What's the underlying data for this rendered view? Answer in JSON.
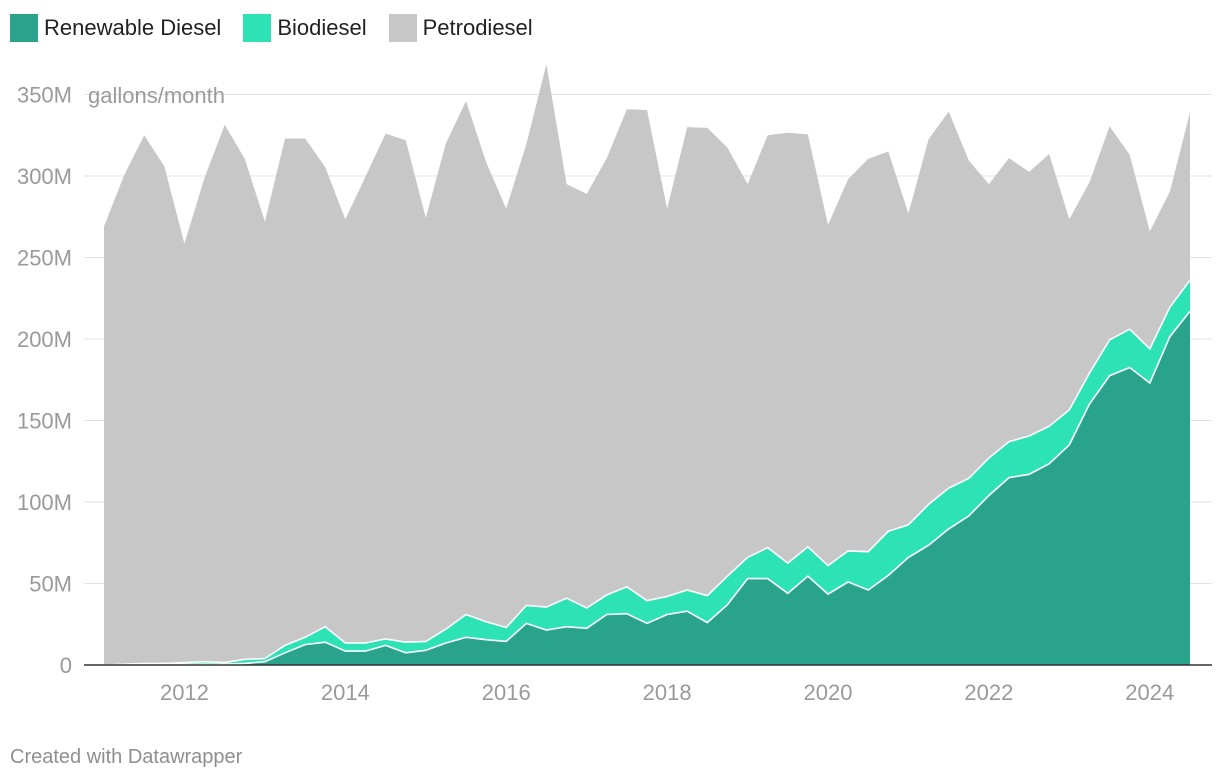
{
  "legend": {
    "items": [
      {
        "label": "Renewable Diesel",
        "color": "#2aa38d"
      },
      {
        "label": "Biodiesel",
        "color": "#2de3b5"
      },
      {
        "label": "Petrodiesel",
        "color": "#c7c7c7"
      }
    ]
  },
  "credit": "Created with Datawrapper",
  "chart_data": {
    "type": "area",
    "stacked": true,
    "unit_label": "gallons/month",
    "x_ticks": [
      "2012",
      "2014",
      "2016",
      "2018",
      "2020",
      "2022",
      "2024"
    ],
    "y_ticks": [
      "0",
      "50M",
      "100M",
      "150M",
      "200M",
      "250M",
      "300M",
      "350M"
    ],
    "ylim": [
      0,
      350000000
    ],
    "xlim": [
      "2011-01",
      "2024-07"
    ],
    "grid": true,
    "legend_position": "top-left",
    "x": [
      "2011-01",
      "2011-04",
      "2011-07",
      "2011-10",
      "2012-01",
      "2012-04",
      "2012-07",
      "2012-10",
      "2013-01",
      "2013-04",
      "2013-07",
      "2013-10",
      "2014-01",
      "2014-04",
      "2014-07",
      "2014-10",
      "2015-01",
      "2015-04",
      "2015-07",
      "2015-10",
      "2016-01",
      "2016-04",
      "2016-07",
      "2016-10",
      "2017-01",
      "2017-04",
      "2017-07",
      "2017-10",
      "2018-01",
      "2018-04",
      "2018-07",
      "2018-10",
      "2019-01",
      "2019-04",
      "2019-07",
      "2019-10",
      "2020-01",
      "2020-04",
      "2020-07",
      "2020-10",
      "2021-01",
      "2021-04",
      "2021-07",
      "2021-10",
      "2022-01",
      "2022-04",
      "2022-07",
      "2022-10",
      "2023-01",
      "2023-04",
      "2023-07",
      "2023-10",
      "2024-01",
      "2024-04",
      "2024-07"
    ],
    "series": [
      {
        "name": "Renewable Diesel",
        "color": "#2aa38d",
        "values": [
          0,
          0,
          0.5,
          0.5,
          0.5,
          0.5,
          0.5,
          1.0,
          2.0,
          7.5,
          12.5,
          14.0,
          8.5,
          8.5,
          12.0,
          7.5,
          9.0,
          13.5,
          17.0,
          15.5,
          14.5,
          25.5,
          21.5,
          23.5,
          22.5,
          31.0,
          31.5,
          25.5,
          31.0,
          33.0,
          26.0,
          37.0,
          53.0,
          53.0,
          44.0,
          54.5,
          43.5,
          51.0,
          46.0,
          55.0,
          66.0,
          73.5,
          83.5,
          91.5,
          104.0,
          115.0,
          117.0,
          123.5,
          135.0,
          160.0,
          177.5,
          182.5,
          173.0,
          201.5,
          217.0
        ]
      },
      {
        "name": "Biodiesel",
        "color": "#2de3b5",
        "values": [
          0,
          0.5,
          0.5,
          0.5,
          1.0,
          1.5,
          1.0,
          2.5,
          2.0,
          4.5,
          4.5,
          9.5,
          5.0,
          5.0,
          4.0,
          6.5,
          5.5,
          8.5,
          14.0,
          11.0,
          8.5,
          11.0,
          14.0,
          17.5,
          12.5,
          12.0,
          16.5,
          14.0,
          11.0,
          13.0,
          16.5,
          17.5,
          13.0,
          19.0,
          18.5,
          18.0,
          17.5,
          19.0,
          23.5,
          27.0,
          20.0,
          25.0,
          25.0,
          23.0,
          23.0,
          22.0,
          23.5,
          23.0,
          21.5,
          19.0,
          22.0,
          23.5,
          21.0,
          18.0,
          19.0
        ]
      },
      {
        "name": "Petrodiesel",
        "color": "#c7c7c7",
        "values": [
          269,
          300,
          324,
          305,
          257,
          297,
          330,
          307,
          268,
          311,
          306,
          282,
          260,
          286,
          310,
          308,
          260,
          298,
          315,
          282,
          257,
          283,
          333,
          254,
          254,
          268,
          293,
          301,
          238,
          284,
          287,
          263,
          229,
          253,
          264,
          253,
          209,
          228,
          241,
          233,
          191,
          224,
          231,
          195,
          168,
          174,
          162,
          167,
          117,
          117,
          131,
          107,
          72,
          71,
          103
        ]
      }
    ]
  }
}
